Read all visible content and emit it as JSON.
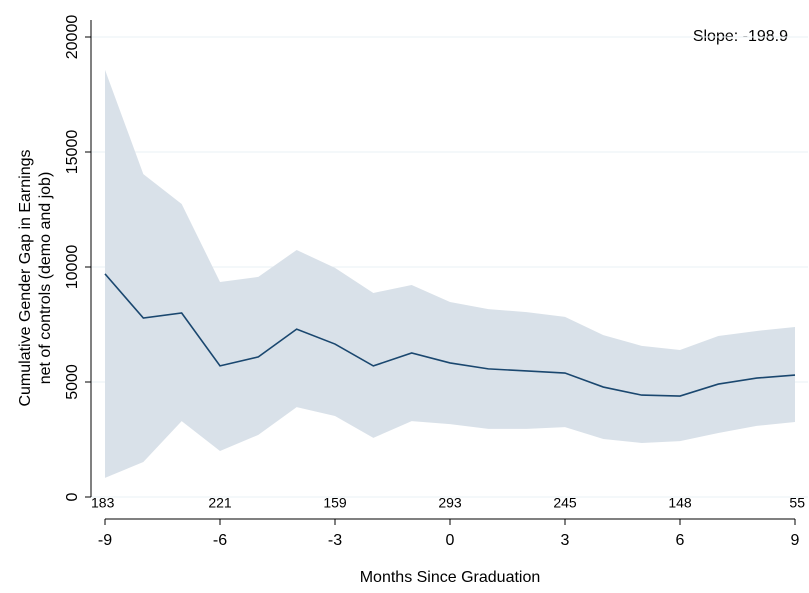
{
  "chart_data": {
    "type": "line_band",
    "x_label": "Months Since Graduation",
    "y_label": [
      "Cumulative Gender Gap in Earnings",
      "net of controls (demo and job)"
    ],
    "annotation": "Slope: -198.9",
    "x": [
      -9,
      -8,
      -7,
      -6,
      -5,
      -4,
      -3,
      -2,
      -1,
      0,
      1,
      2,
      3,
      4,
      5,
      6,
      7,
      8,
      9
    ],
    "series": [
      {
        "color": "#1a476f",
        "values": [
          9700,
          7780,
          8000,
          5700,
          6090,
          7300,
          6650,
          5700,
          6260,
          5830,
          5570,
          5480,
          5390,
          4780,
          4430,
          4390,
          4910,
          5170,
          5300
        ],
        "upper": [
          18570,
          14040,
          12740,
          9350,
          9570,
          10740,
          9960,
          8870,
          9220,
          8480,
          8170,
          8040,
          7830,
          7040,
          6570,
          6390,
          7000,
          7220,
          7390
        ],
        "lower": [
          830,
          1520,
          3300,
          2000,
          2700,
          3910,
          3520,
          2570,
          3300,
          3170,
          2960,
          2960,
          3040,
          2520,
          2350,
          2430,
          2780,
          3090,
          3260
        ],
        "band_color": "#d9e1e9"
      }
    ],
    "counts": {
      "x": [
        -9,
        -6,
        -3,
        0,
        3,
        6,
        9
      ],
      "values": [
        183,
        221,
        159,
        293,
        245,
        148,
        55
      ]
    },
    "xlim": [
      -9,
      9
    ],
    "xticks": [
      -9,
      -6,
      -3,
      0,
      3,
      6,
      9
    ],
    "ylim": [
      0,
      20000
    ],
    "yticks": [
      0,
      5000,
      10000,
      15000,
      20000
    ],
    "grid": true
  }
}
